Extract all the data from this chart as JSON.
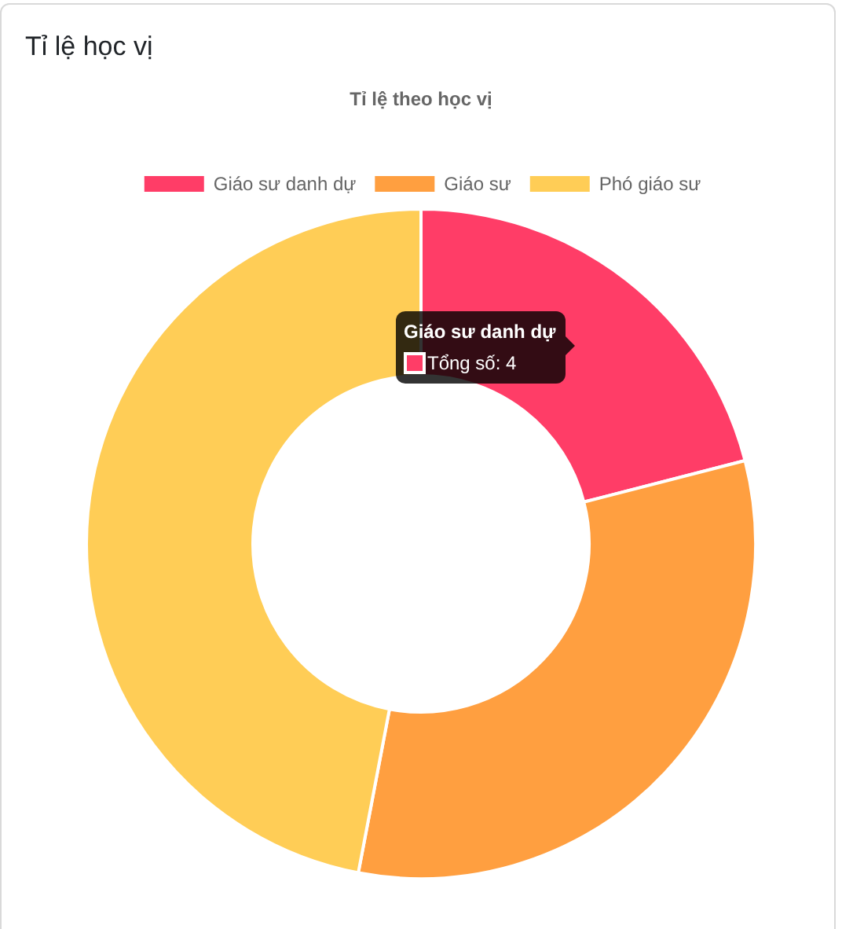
{
  "chart_data": {
    "type": "donut",
    "title": "Tỉ lệ học vị",
    "subtitle": "Tỉ lệ theo học vị",
    "categories": [
      "Giáo sư danh dự",
      "Giáo sư",
      "Phó giáo sư"
    ],
    "values": [
      21,
      32,
      47
    ],
    "colors": [
      "#ff3d67",
      "#ff9f40",
      "#ffcd56"
    ],
    "legend": "top",
    "annotations": [
      "Giáo sư danh dự",
      "Tổng số: 4"
    ]
  }
}
